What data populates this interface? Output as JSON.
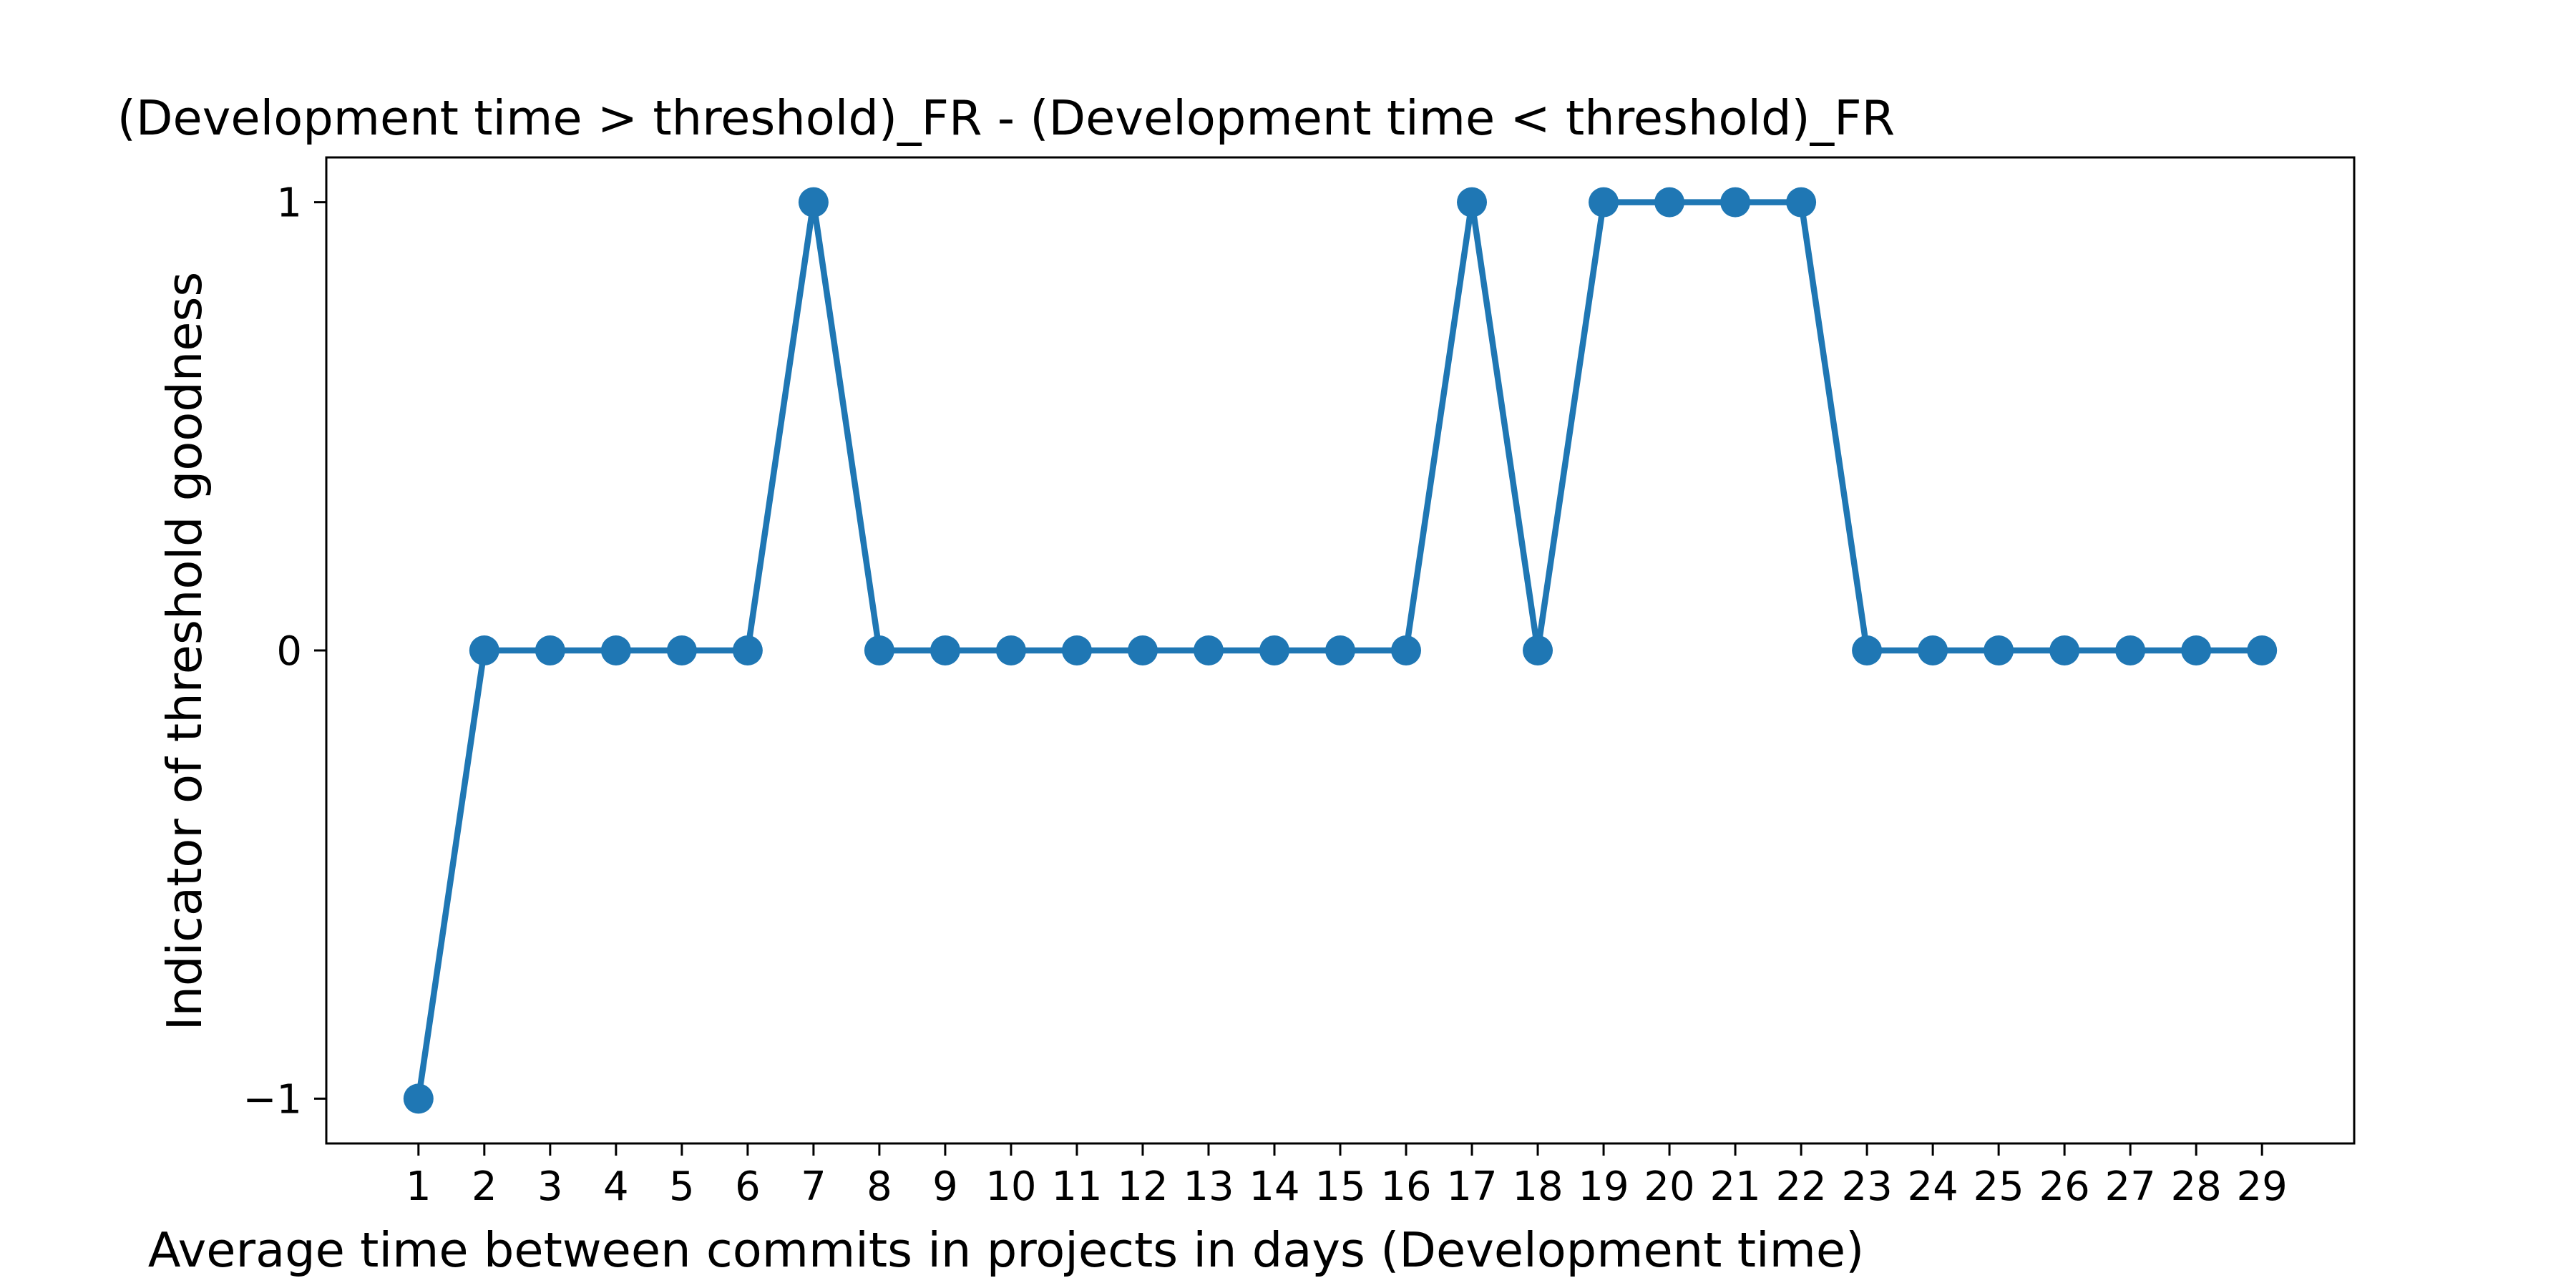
{
  "chart_data": {
    "type": "line",
    "title": "(Development time > threshold)_FR - (Development time < threshold)_FR",
    "xlabel": "Average time between commits in projects in days (Development time)",
    "ylabel": "Indicator of threshold goodness",
    "x": [
      1,
      2,
      3,
      4,
      5,
      6,
      7,
      8,
      9,
      10,
      11,
      12,
      13,
      14,
      15,
      16,
      17,
      18,
      19,
      20,
      21,
      22,
      23,
      24,
      25,
      26,
      27,
      28,
      29
    ],
    "series": [
      {
        "values": [
          -1,
          0,
          0,
          0,
          0,
          0,
          1,
          0,
          0,
          0,
          0,
          0,
          0,
          0,
          0,
          0,
          1,
          0,
          1,
          1,
          1,
          1,
          0,
          0,
          0,
          0,
          0,
          0,
          0
        ]
      }
    ],
    "xticks": [
      "1",
      "2",
      "3",
      "4",
      "5",
      "6",
      "7",
      "8",
      "9",
      "10",
      "11",
      "12",
      "13",
      "14",
      "15",
      "16",
      "17",
      "18",
      "19",
      "20",
      "21",
      "22",
      "23",
      "24",
      "25",
      "26",
      "27",
      "28",
      "29"
    ],
    "yticks": [
      {
        "value": -1,
        "label": "−1"
      },
      {
        "value": 0,
        "label": "0"
      },
      {
        "value": 1,
        "label": "1"
      }
    ],
    "xlim": [
      -0.4,
      30.4
    ],
    "ylim": [
      -1.1,
      1.1
    ],
    "grid": false,
    "line_color": "#1f77b4"
  }
}
